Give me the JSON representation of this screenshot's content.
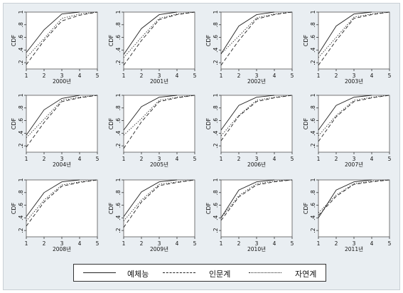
{
  "chart_data": {
    "type": "line",
    "ylabel": "CDF",
    "x": [
      1,
      2,
      3,
      4,
      5
    ],
    "xlim": [
      1,
      5
    ],
    "ylim": [
      0.1,
      1
    ],
    "xticks": [
      "1",
      "2",
      "3",
      "4",
      "5"
    ],
    "yticks": [
      ".2",
      ".4",
      ".6",
      ".8",
      "1"
    ],
    "series_names": [
      "예체능",
      "인문계",
      "자연계"
    ],
    "colors": {
      "line": "#222222",
      "panel": "#e9eef2",
      "plot": "#ffffff"
    },
    "panels": [
      {
        "title": "2000년",
        "series": [
          {
            "name": "예체능",
            "values": [
              0.36,
              0.72,
              0.97,
              1.0,
              null
            ]
          },
          {
            "name": "인문계",
            "values": [
              0.17,
              0.55,
              0.86,
              0.95,
              1.0
            ]
          },
          {
            "name": "자연계",
            "values": [
              0.28,
              0.58,
              0.9,
              0.97,
              1.0
            ]
          }
        ]
      },
      {
        "title": "2001년",
        "series": [
          {
            "name": "예체능",
            "values": [
              0.33,
              0.74,
              0.96,
              1.0,
              null
            ]
          },
          {
            "name": "인문계",
            "values": [
              0.16,
              0.55,
              0.88,
              0.96,
              1.0
            ]
          },
          {
            "name": "자연계",
            "values": [
              0.28,
              0.6,
              0.9,
              0.97,
              1.0
            ]
          }
        ]
      },
      {
        "title": "2002년",
        "series": [
          {
            "name": "예체능",
            "values": [
              0.34,
              0.78,
              0.96,
              1.0,
              null
            ]
          },
          {
            "name": "인문계",
            "values": [
              0.16,
              0.55,
              0.89,
              0.96,
              1.0
            ]
          },
          {
            "name": "자연계",
            "values": [
              0.34,
              0.62,
              0.91,
              0.97,
              1.0
            ]
          }
        ]
      },
      {
        "title": "2003년",
        "series": [
          {
            "name": "예체능",
            "values": [
              0.34,
              0.78,
              0.97,
              1.0,
              null
            ]
          },
          {
            "name": "인문계",
            "values": [
              0.16,
              0.55,
              0.9,
              0.96,
              1.0
            ]
          },
          {
            "name": "자연계",
            "values": [
              0.28,
              0.6,
              0.92,
              0.97,
              1.0
            ]
          }
        ]
      },
      {
        "title": "2004년",
        "series": [
          {
            "name": "예체능",
            "values": [
              0.37,
              0.77,
              0.95,
              1.0,
              null
            ]
          },
          {
            "name": "인문계",
            "values": [
              0.18,
              0.57,
              0.9,
              0.96,
              1.0
            ]
          },
          {
            "name": "자연계",
            "values": [
              0.33,
              0.62,
              0.92,
              0.97,
              1.0
            ]
          }
        ]
      },
      {
        "title": "2005년",
        "series": [
          {
            "name": "예체능",
            "values": [
              0.45,
              0.82,
              0.97,
              1.0,
              null
            ]
          },
          {
            "name": "인문계",
            "values": [
              0.16,
              0.58,
              0.9,
              0.96,
              1.0
            ]
          },
          {
            "name": "자연계",
            "values": [
              0.37,
              0.63,
              0.92,
              0.97,
              1.0
            ]
          }
        ]
      },
      {
        "title": "2006년",
        "series": [
          {
            "name": "예체능",
            "values": [
              0.45,
              0.84,
              0.97,
              1.0,
              null
            ]
          },
          {
            "name": "인문계",
            "values": [
              0.28,
              0.67,
              0.9,
              0.96,
              1.0
            ]
          },
          {
            "name": "자연계",
            "values": [
              0.36,
              0.68,
              0.92,
              0.97,
              1.0
            ]
          }
        ]
      },
      {
        "title": "2007년",
        "series": [
          {
            "name": "예체능",
            "values": [
              0.45,
              0.84,
              0.97,
              1.0,
              null
            ]
          },
          {
            "name": "인문계",
            "values": [
              0.27,
              0.66,
              0.9,
              0.96,
              1.0
            ]
          },
          {
            "name": "자연계",
            "values": [
              0.36,
              0.68,
              0.92,
              0.97,
              1.0
            ]
          }
        ]
      },
      {
        "title": "2008년",
        "series": [
          {
            "name": "예체능",
            "values": [
              0.42,
              0.8,
              0.97,
              1.0,
              null
            ]
          },
          {
            "name": "인문계",
            "values": [
              0.27,
              0.65,
              0.9,
              0.96,
              1.0
            ]
          },
          {
            "name": "자연계",
            "values": [
              0.35,
              0.68,
              0.92,
              0.97,
              1.0
            ]
          }
        ]
      },
      {
        "title": "2009년",
        "series": [
          {
            "name": "예체능",
            "values": [
              0.42,
              0.81,
              0.97,
              1.0,
              null
            ]
          },
          {
            "name": "인문계",
            "values": [
              0.25,
              0.65,
              0.91,
              0.96,
              1.0
            ]
          },
          {
            "name": "자연계",
            "values": [
              0.35,
              0.68,
              0.93,
              0.97,
              1.0
            ]
          }
        ]
      },
      {
        "title": "2010년",
        "series": [
          {
            "name": "예체능",
            "values": [
              0.4,
              0.84,
              0.97,
              1.0,
              null
            ]
          },
          {
            "name": "인문계",
            "values": [
              0.36,
              0.73,
              0.92,
              0.97,
              1.0
            ]
          },
          {
            "name": "자연계",
            "values": [
              0.4,
              0.75,
              0.94,
              0.98,
              1.0
            ]
          }
        ]
      },
      {
        "title": "2011년",
        "series": [
          {
            "name": "예체능",
            "values": [
              0.4,
              0.84,
              0.97,
              1.0,
              null
            ]
          },
          {
            "name": "인문계",
            "values": [
              0.44,
              0.74,
              0.93,
              0.97,
              1.0
            ]
          },
          {
            "name": "자연계",
            "values": [
              0.48,
              0.76,
              0.94,
              0.98,
              1.0
            ]
          }
        ]
      }
    ]
  }
}
